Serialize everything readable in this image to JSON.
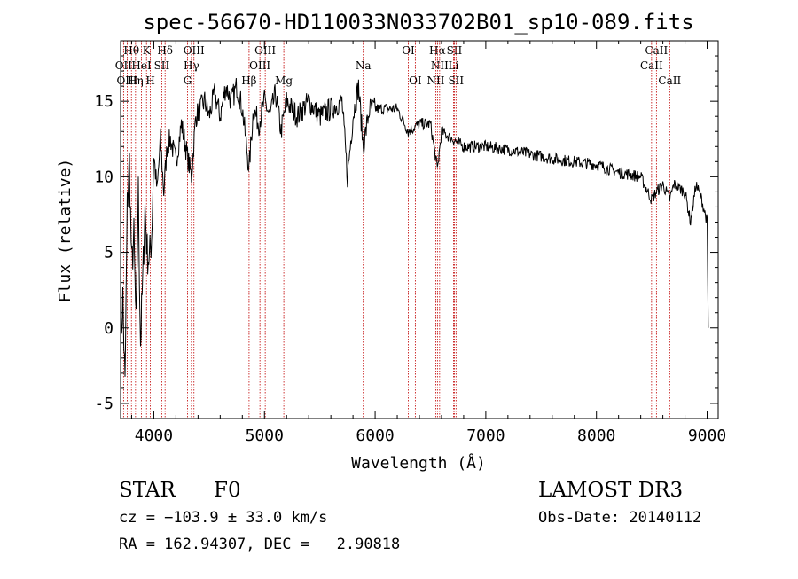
{
  "chart_data": {
    "type": "line",
    "title": "spec-56670-HD110033N033702B01_sp10-089.fits",
    "xlabel": "Wavelength (Å)",
    "ylabel": "Flux (relative)",
    "xlim": [
      3700,
      9100
    ],
    "ylim": [
      -6,
      19
    ],
    "xticks": [
      4000,
      5000,
      6000,
      7000,
      8000,
      9000
    ],
    "yticks": [
      -5,
      0,
      5,
      10,
      15
    ],
    "series": [
      {
        "name": "spectrum",
        "x": [
          3700,
          3720,
          3740,
          3760,
          3780,
          3800,
          3820,
          3840,
          3860,
          3880,
          3900,
          3920,
          3940,
          3960,
          3980,
          4000,
          4030,
          4060,
          4090,
          4120,
          4150,
          4200,
          4250,
          4300,
          4340,
          4380,
          4420,
          4460,
          4500,
          4550,
          4600,
          4650,
          4700,
          4750,
          4800,
          4861,
          4900,
          4950,
          5000,
          5050,
          5100,
          5150,
          5200,
          5300,
          5400,
          5500,
          5600,
          5700,
          5750,
          5800,
          5850,
          5893,
          5950,
          6000,
          6100,
          6200,
          6300,
          6400,
          6500,
          6563,
          6600,
          6700,
          6800,
          7000,
          7200,
          7400,
          7600,
          7800,
          8000,
          8200,
          8400,
          8498,
          8542,
          8600,
          8662,
          8700,
          8800,
          8850,
          8900,
          8950,
          9000,
          9010
        ],
        "values": [
          -1.5,
          2.0,
          -4.0,
          8.0,
          11.0,
          4.0,
          6.0,
          0.0,
          9.0,
          -1.0,
          3.0,
          8.0,
          5.0,
          4.5,
          6.0,
          11.5,
          9.0,
          12.5,
          9.0,
          12.0,
          12.5,
          11.0,
          13.5,
          11.5,
          10.0,
          14.0,
          14.5,
          15.0,
          14.0,
          15.5,
          14.0,
          16.0,
          15.0,
          16.0,
          14.5,
          10.5,
          14.5,
          13.5,
          15.0,
          14.0,
          15.5,
          13.0,
          15.0,
          14.0,
          15.0,
          14.0,
          14.5,
          15.0,
          10.0,
          14.0,
          16.0,
          12.0,
          14.5,
          14.5,
          14.5,
          14.5,
          13.0,
          13.5,
          13.5,
          10.5,
          13.0,
          12.5,
          12.0,
          12.0,
          11.8,
          11.5,
          11.2,
          11.0,
          10.8,
          10.3,
          10.0,
          8.5,
          9.0,
          9.5,
          8.5,
          9.5,
          9.0,
          7.0,
          9.5,
          8.5,
          7.0,
          0.0
        ]
      }
    ],
    "emission_lines": [
      {
        "label": "Hθ",
        "wavelength": 3798,
        "row": 1
      },
      {
        "label": "OII",
        "wavelength": 3727,
        "row": 2
      },
      {
        "label": "OIII",
        "wavelength": 3760,
        "row": 3
      },
      {
        "label": "HeI",
        "wavelength": 3889,
        "row": 2
      },
      {
        "label": "Hη",
        "wavelength": 3835,
        "row": 3
      },
      {
        "label": "K",
        "wavelength": 3934,
        "row": 1
      },
      {
        "label": "SII",
        "wavelength": 4072,
        "row": 2
      },
      {
        "label": "H",
        "wavelength": 3969,
        "row": 3
      },
      {
        "label": "Hδ",
        "wavelength": 4102,
        "row": 1
      },
      {
        "label": "OIII",
        "wavelength": 4363,
        "row": 1
      },
      {
        "label": "Hγ",
        "wavelength": 4340,
        "row": 2
      },
      {
        "label": "G",
        "wavelength": 4305,
        "row": 3
      },
      {
        "label": "OIII",
        "wavelength": 5007,
        "row": 1
      },
      {
        "label": "OIII",
        "wavelength": 4959,
        "row": 2
      },
      {
        "label": "Hβ",
        "wavelength": 4861,
        "row": 3
      },
      {
        "label": "Mg",
        "wavelength": 5175,
        "row": 3
      },
      {
        "label": "Na",
        "wavelength": 5893,
        "row": 2
      },
      {
        "label": "OI",
        "wavelength": 6300,
        "row": 1
      },
      {
        "label": "OI",
        "wavelength": 6363,
        "row": 3
      },
      {
        "label": "Hα",
        "wavelength": 6563,
        "row": 1
      },
      {
        "label": "SII",
        "wavelength": 6716,
        "row": 1
      },
      {
        "label": "NII",
        "wavelength": 6583,
        "row": 2
      },
      {
        "label": "Li",
        "wavelength": 6708,
        "row": 2
      },
      {
        "label": "NII",
        "wavelength": 6548,
        "row": 3
      },
      {
        "label": "SII",
        "wavelength": 6731,
        "row": 3
      },
      {
        "label": "CaII",
        "wavelength": 8542,
        "row": 1
      },
      {
        "label": "CaII",
        "wavelength": 8498,
        "row": 2
      },
      {
        "label": "CaII",
        "wavelength": 8662,
        "row": 3
      }
    ]
  },
  "footer": {
    "class_label": "STAR",
    "subclass": "F0",
    "survey": "LAMOST DR3",
    "cz": "cz = −103.9 ± 33.0 km/s",
    "obs_date": "Obs-Date: 20140112",
    "coords": "RA = 162.94307, DEC =   2.90818"
  },
  "colors": {
    "line": "#000000",
    "marker_lines": "#c00000"
  }
}
